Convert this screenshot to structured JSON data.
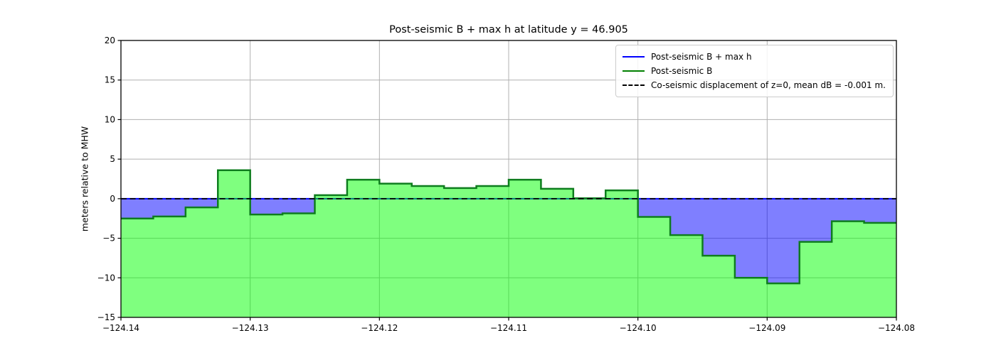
{
  "title": "Post-seismic B + max h at latitude y = 46.905",
  "ylabel": "meters relative to MHW",
  "legend": {
    "items": [
      {
        "label": "Post-seismic B + max h",
        "color": "#0000ff",
        "style": "solid"
      },
      {
        "label": "Post-seismic B",
        "color": "#008000",
        "style": "solid"
      },
      {
        "label": "Co-seismic displacement of z=0, mean dB = -0.001 m.",
        "color": "#000000",
        "style": "dashed"
      }
    ]
  },
  "chart_data": {
    "type": "area",
    "step_mode": "post",
    "title": "Post-seismic B + max h at latitude y = 46.905",
    "xlabel": "",
    "ylabel": "meters relative to MHW",
    "xlim": [
      -124.14,
      -124.08
    ],
    "ylim": [
      -15,
      20
    ],
    "grid": true,
    "legend_position": "upper right",
    "x_start": -124.14,
    "x_step": 0.0025,
    "series": [
      {
        "name": "Post-seismic B",
        "values": [
          -2.5,
          -2.25,
          -1.1,
          3.6,
          -2.0,
          -1.85,
          0.45,
          2.4,
          1.9,
          1.6,
          1.35,
          1.6,
          2.4,
          1.25,
          0.05,
          1.05,
          -2.3,
          -4.6,
          -7.2,
          -10.0,
          -10.7,
          -5.45,
          -2.85,
          -3.05
        ]
      },
      {
        "name": "Post-seismic B + max h",
        "constant": 0.0
      },
      {
        "name": "Co-seismic displacement of z=0",
        "constant": -0.001,
        "mean_dB_m": -0.001
      }
    ],
    "xticks": [
      -124.14,
      -124.13,
      -124.12,
      -124.11,
      -124.1,
      -124.09,
      -124.08
    ],
    "xtick_labels": [
      "−124.14",
      "−124.13",
      "−124.12",
      "−124.11",
      "−124.10",
      "−124.09",
      "−124.08"
    ],
    "yticks": [
      20,
      15,
      10,
      5,
      0,
      -5,
      -10,
      -15
    ],
    "ytick_labels": [
      "20",
      "15",
      "10",
      "5",
      "0",
      "−5",
      "−10",
      "−15"
    ],
    "colors": {
      "b_line": "#0e7d1e",
      "b_fill": "#00ff00",
      "maxh_line": "#0000ff",
      "maxh_fill": "#0000ff",
      "fill_opacity": 0.5,
      "dashed_line": "#000000",
      "grid": "#b0b0b0",
      "spine": "#000000"
    }
  }
}
